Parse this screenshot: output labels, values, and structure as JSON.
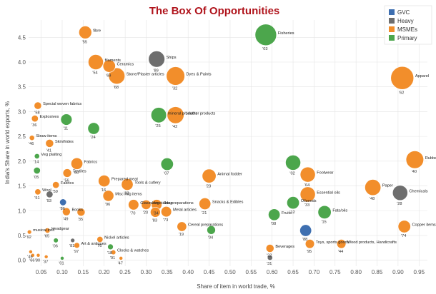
{
  "chart_data": {
    "type": "scatter",
    "title": "The Box Of Opportunities",
    "xlabel": "Share of item in world trade, %",
    "ylabel": "India's Share in world exports, %",
    "xlim": [
      0.02,
      0.97
    ],
    "ylim": [
      -0.12,
      4.85
    ],
    "xticks": [
      "0.05",
      "0.10",
      "0.15",
      "0.20",
      "0.25",
      "0.30",
      "0.35",
      "0.40",
      "0.45",
      "0.50",
      "0.55",
      "0.60",
      "0.65",
      "0.70",
      "0.75",
      "0.80",
      "0.85",
      "0.90",
      "0.95"
    ],
    "yticks": [
      "0.0",
      "0.5",
      "1.0",
      "1.5",
      "2.0",
      "2.5",
      "3.0",
      "3.5",
      "4.0",
      "4.5"
    ],
    "legend": [
      {
        "name": "GVC",
        "color": "#3e6fb0"
      },
      {
        "name": "Heavy",
        "color": "#6e6e6e"
      },
      {
        "name": "MSMEs",
        "color": "#f28e2b"
      },
      {
        "name": "Primary",
        "color": "#4ca64c"
      }
    ],
    "points": [
      {
        "label": "fibre",
        "code": "'55",
        "cat": "MSMEs",
        "x": 0.155,
        "y": 4.6,
        "size": 0.36
      },
      {
        "label": "Fisheries",
        "code": "'03",
        "cat": "Primary",
        "x": 0.585,
        "y": 4.55,
        "size": 1.0
      },
      {
        "label": "filaments",
        "code": "'54",
        "cat": "MSMEs",
        "x": 0.18,
        "y": 4.0,
        "size": 0.5
      },
      {
        "label": "Ceramics",
        "code": "'69",
        "cat": "MSMEs",
        "x": 0.212,
        "y": 3.92,
        "size": 0.34
      },
      {
        "label": "Ships",
        "code": "'89",
        "cat": "Heavy",
        "x": 0.325,
        "y": 4.06,
        "size": 0.58
      },
      {
        "label": "Stone/Plaster articles",
        "code": "'68",
        "cat": "MSMEs",
        "x": 0.23,
        "y": 3.72,
        "size": 0.58
      },
      {
        "label": "Dyes & Paints",
        "code": "'32",
        "cat": "MSMEs",
        "x": 0.37,
        "y": 3.72,
        "size": 0.74
      },
      {
        "label": "Apparel",
        "code": "'62",
        "cat": "MSMEs",
        "x": 0.91,
        "y": 3.68,
        "size": 1.15
      },
      {
        "label": "Special woven fabrics",
        "code": "'58",
        "cat": "MSMEs",
        "x": 0.042,
        "y": 3.12,
        "size": 0.12
      },
      {
        "label": "Explosives",
        "code": "'36",
        "cat": "MSMEs",
        "x": 0.035,
        "y": 2.86,
        "size": 0.1
      },
      {
        "label": "",
        "code": "'11",
        "cat": "Primary",
        "x": 0.11,
        "y": 2.84,
        "size": 0.28
      },
      {
        "label": "mineral products",
        "code": "'25",
        "cat": "Primary",
        "x": 0.33,
        "y": 2.93,
        "size": 0.52
      },
      {
        "label": "Leather products",
        "code": "'42",
        "cat": "MSMEs",
        "x": 0.37,
        "y": 2.93,
        "size": 0.62
      },
      {
        "label": "",
        "code": "'24",
        "cat": "Primary",
        "x": 0.175,
        "y": 2.66,
        "size": 0.3
      },
      {
        "label": "Straw items",
        "code": "'46",
        "cat": "MSMEs",
        "x": 0.028,
        "y": 2.47,
        "size": 0.06
      },
      {
        "label": "Skin/hides",
        "code": "'41",
        "cat": "MSMEs",
        "x": 0.07,
        "y": 2.36,
        "size": 0.14
      },
      {
        "label": "Rubber",
        "code": "'40",
        "cat": "MSMEs",
        "x": 0.94,
        "y": 2.03,
        "size": 0.68
      },
      {
        "label": "Veg plaiting",
        "code": "'14",
        "cat": "Primary",
        "x": 0.04,
        "y": 2.1,
        "size": 0.06
      },
      {
        "label": "Fabrics",
        "code": "'60",
        "cat": "MSMEs",
        "x": 0.135,
        "y": 1.95,
        "size": 0.3
      },
      {
        "label": "",
        "code": "'07",
        "cat": "Primary",
        "x": 0.35,
        "y": 1.94,
        "size": 0.34
      },
      {
        "label": "",
        "code": "'02",
        "cat": "Primary",
        "x": 0.65,
        "y": 1.97,
        "size": 0.5
      },
      {
        "label": "Footwear",
        "code": "'64",
        "cat": "MSMEs",
        "x": 0.685,
        "y": 1.73,
        "size": 0.5
      },
      {
        "label": "",
        "code": "'05",
        "cat": "Primary",
        "x": 0.04,
        "y": 1.81,
        "size": 0.1
      },
      {
        "label": "Textiles",
        "code": "'56",
        "cat": "MSMEs",
        "x": 0.112,
        "y": 1.76,
        "size": 0.16
      },
      {
        "label": "Prepared meat",
        "code": "'16",
        "cat": "MSMEs",
        "x": 0.2,
        "y": 1.6,
        "size": 0.3
      },
      {
        "label": "Tools & cutlery",
        "code": "'82",
        "cat": "MSMEs",
        "x": 0.255,
        "y": 1.53,
        "size": 0.3
      },
      {
        "label": "Animal fodder",
        "code": "'23",
        "cat": "MSMEs",
        "x": 0.45,
        "y": 1.7,
        "size": 0.42
      },
      {
        "label": "Paper",
        "code": "'48",
        "cat": "MSMEs",
        "x": 0.84,
        "y": 1.47,
        "size": 0.56
      },
      {
        "label": "Fabrics",
        "code": "'59",
        "cat": "MSMEs",
        "x": 0.085,
        "y": 1.52,
        "size": 0.1
      },
      {
        "label": "Essential oils",
        "code": "'33",
        "cat": "MSMEs",
        "x": 0.685,
        "y": 1.33,
        "size": 0.5
      },
      {
        "label": "Chemicals",
        "code": "'28",
        "cat": "Heavy",
        "x": 0.905,
        "y": 1.36,
        "size": 0.5
      },
      {
        "label": "Wool",
        "code": "'51",
        "cat": "MSMEs",
        "x": 0.042,
        "y": 1.38,
        "size": 0.08
      },
      {
        "label": "",
        "code": "'93",
        "cat": "Heavy",
        "x": 0.07,
        "y": 1.33,
        "size": 0.1
      },
      {
        "label": "Misc mfg items",
        "code": "'96",
        "cat": "MSMEs",
        "x": 0.21,
        "y": 1.3,
        "size": 0.26
      },
      {
        "label": "Glassware",
        "code": "'70",
        "cat": "MSMEs",
        "x": 0.27,
        "y": 1.12,
        "size": 0.24
      },
      {
        "label": "Snacks & Edibles",
        "code": "'21",
        "cat": "MSMEs",
        "x": 0.44,
        "y": 1.14,
        "size": 0.3
      },
      {
        "label": "Oilseeds",
        "code": "'12",
        "cat": "Primary",
        "x": 0.65,
        "y": 1.16,
        "size": 0.34
      },
      {
        "label": "",
        "code": "'86",
        "cat": "GVC",
        "x": 0.102,
        "y": 1.17,
        "size": 0.1
      },
      {
        "label": "Vegetable preparations",
        "code": "'20",
        "cat": "MSMEs",
        "x": 0.3,
        "y": 1.12,
        "size": 0.2
      },
      {
        "label": "Soap",
        "code": "'34",
        "cat": "MSMEs",
        "x": 0.325,
        "y": 1.12,
        "size": 0.24
      },
      {
        "label": "",
        "code": "'83",
        "cat": "MSMEs",
        "x": 0.322,
        "y": 0.97,
        "size": 0.22
      },
      {
        "label": "Metal articles",
        "code": "'73",
        "cat": "MSMEs",
        "x": 0.348,
        "y": 0.98,
        "size": 0.24
      },
      {
        "label": "Fats/oils",
        "code": "'15",
        "cat": "Primary",
        "x": 0.725,
        "y": 0.97,
        "size": 0.38
      },
      {
        "label": "Fruits",
        "code": "'08",
        "cat": "Primary",
        "x": 0.605,
        "y": 0.92,
        "size": 0.3
      },
      {
        "label": "Books",
        "code": "'49",
        "cat": "MSMEs",
        "x": 0.11,
        "y": 0.98,
        "size": 0.14
      },
      {
        "label": "",
        "code": "'35",
        "cat": "MSMEs",
        "x": 0.145,
        "y": 0.97,
        "size": 0.14
      },
      {
        "label": "Cereal preparations",
        "code": "'19",
        "cat": "MSMEs",
        "x": 0.385,
        "y": 0.68,
        "size": 0.2
      },
      {
        "label": "",
        "code": "'04",
        "cat": "Primary",
        "x": 0.455,
        "y": 0.61,
        "size": 0.16
      },
      {
        "label": "Copper items",
        "code": "'74",
        "cat": "MSMEs",
        "x": 0.915,
        "y": 0.68,
        "size": 0.34
      },
      {
        "label": "",
        "code": "'88",
        "cat": "GVC",
        "x": 0.68,
        "y": 0.6,
        "size": 0.3
      },
      {
        "label": "musical inst.",
        "code": "'92",
        "cat": "MSMEs",
        "x": 0.022,
        "y": 0.57,
        "size": 0.04
      },
      {
        "label": "Headgear",
        "code": "'65",
        "cat": "MSMEs",
        "x": 0.065,
        "y": 0.6,
        "size": 0.06
      },
      {
        "label": "Nickel articles",
        "code": "'75",
        "cat": "MSMEs",
        "x": 0.19,
        "y": 0.42,
        "size": 0.08
      },
      {
        "label": "",
        "code": "'06",
        "cat": "Primary",
        "x": 0.085,
        "y": 0.4,
        "size": 0.05
      },
      {
        "label": "",
        "code": "'81",
        "cat": "Heavy",
        "x": 0.125,
        "y": 0.4,
        "size": 0.04
      },
      {
        "label": "Art & antiques",
        "code": "'97",
        "cat": "MSMEs",
        "x": 0.135,
        "y": 0.3,
        "size": 0.07
      },
      {
        "label": "",
        "code": "'18",
        "cat": "Primary",
        "x": 0.215,
        "y": 0.27,
        "size": 0.07
      },
      {
        "label": "Clocks & watches",
        "code": "'91",
        "cat": "MSMEs",
        "x": 0.222,
        "y": 0.16,
        "size": 0.05
      },
      {
        "label": "Beverages",
        "code": "'22",
        "cat": "MSMEs",
        "x": 0.595,
        "y": 0.24,
        "size": 0.14
      },
      {
        "label": "Toys, sports goods",
        "code": "'95",
        "cat": "MSMEs",
        "x": 0.69,
        "y": 0.33,
        "size": 0.18
      },
      {
        "label": "Wood products, Handicrafts",
        "code": "'44",
        "cat": "MSMEs",
        "x": 0.765,
        "y": 0.33,
        "size": 0.18
      },
      {
        "label": "",
        "code": "'45",
        "cat": "MSMEs",
        "x": 0.025,
        "y": 0.17,
        "size": 0.03
      },
      {
        "label": "",
        "code": "'66",
        "cat": "MSMEs",
        "x": 0.03,
        "y": 0.1,
        "size": 0.03
      },
      {
        "label": "",
        "code": "'80",
        "cat": "MSMEs",
        "x": 0.043,
        "y": 0.1,
        "size": 0.03
      },
      {
        "label": "",
        "code": "'37",
        "cat": "MSMEs",
        "x": 0.062,
        "y": 0.07,
        "size": 0.03
      },
      {
        "label": "",
        "code": "'01",
        "cat": "Primary",
        "x": 0.1,
        "y": 0.04,
        "size": 0.03
      },
      {
        "label": "",
        "code": "'47",
        "cat": "MSMEs",
        "x": 0.24,
        "y": 0.04,
        "size": 0.03
      },
      {
        "label": "",
        "code": "'31",
        "cat": "Heavy",
        "x": 0.595,
        "y": 0.05,
        "size": 0.06
      }
    ]
  }
}
